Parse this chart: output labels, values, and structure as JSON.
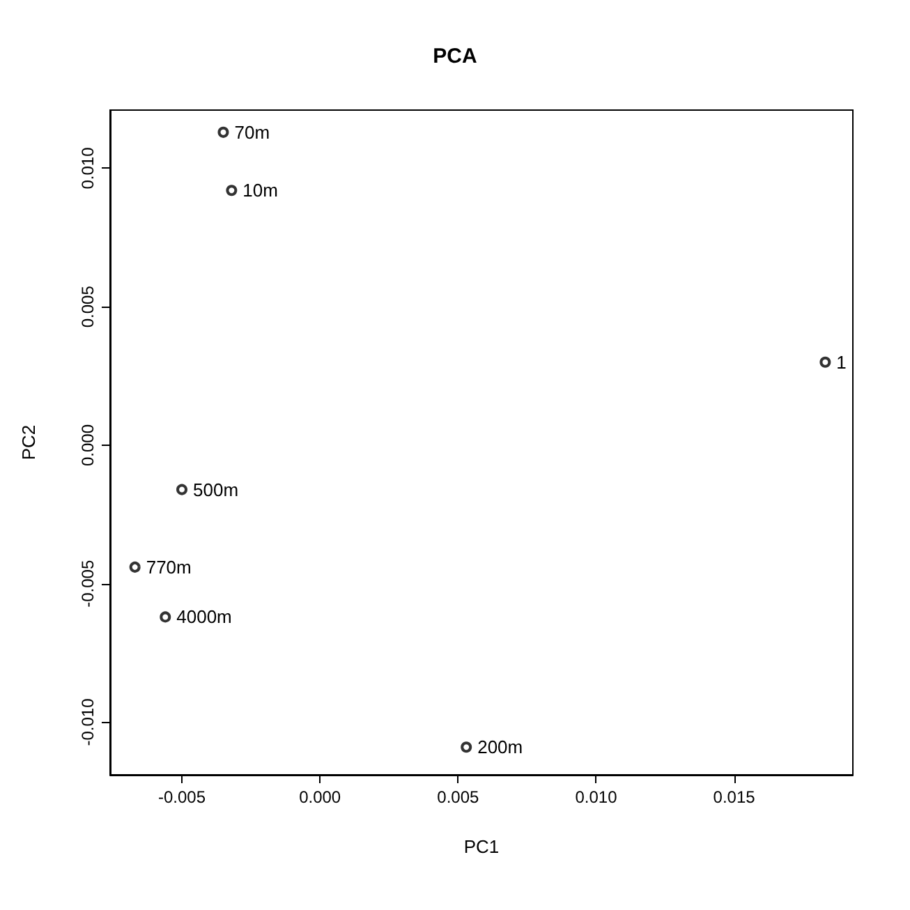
{
  "chart_data": {
    "type": "scatter",
    "title": "PCA",
    "xlabel": "PC1",
    "ylabel": "PC2",
    "x": [
      -0.0035,
      -0.0032,
      0.0183,
      -0.005,
      -0.0067,
      -0.0056,
      0.0053
    ],
    "series": [
      {
        "color": "#000000",
        "values": [
          0.0113,
          0.0092,
          0.003,
          -0.0016,
          -0.0044,
          -0.0062,
          -0.0109
        ]
      }
    ],
    "xlim": [
      -0.0076,
      0.0193
    ],
    "ylim": [
      -0.0119,
      0.0121
    ],
    "xticks": [
      {
        "value": -0.005,
        "label": "-0.005"
      },
      {
        "value": 0,
        "label": "0.000"
      },
      {
        "value": 0.005,
        "label": "0.005"
      },
      {
        "value": 0.01,
        "label": "0.010"
      },
      {
        "value": 0.015,
        "label": "0.015"
      }
    ],
    "yticks": [
      {
        "value": -0.01,
        "label": "-0.010"
      },
      {
        "value": -0.005,
        "label": "-0.005"
      },
      {
        "value": 0,
        "label": "0.000"
      },
      {
        "value": 0.005,
        "label": "0.005"
      },
      {
        "value": 0.01,
        "label": "0.010"
      }
    ],
    "annotations": [
      {
        "text": "70m",
        "x": -0.0035,
        "y": 0.0113
      },
      {
        "text": "10m",
        "x": -0.0032,
        "y": 0.0092
      },
      {
        "text": "1",
        "x": 0.0183,
        "y": 0.003
      },
      {
        "text": "500m",
        "x": -0.005,
        "y": -0.0016
      },
      {
        "text": "770m",
        "x": -0.0067,
        "y": -0.0044
      },
      {
        "text": "4000m",
        "x": -0.0056,
        "y": -0.0062
      },
      {
        "text": "200m",
        "x": 0.0053,
        "y": -0.0109
      }
    ],
    "grid": false,
    "marker": "circle"
  }
}
